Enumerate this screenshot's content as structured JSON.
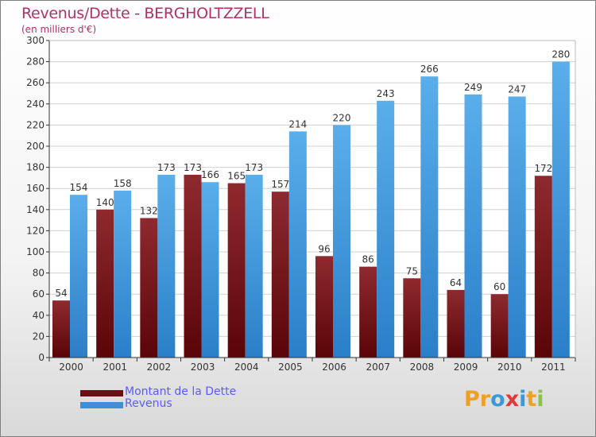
{
  "chart_data": {
    "type": "bar",
    "title": "Revenus/Dette - BERGHOLTZZELL",
    "subtitle": "(en milliers d'€)",
    "categories": [
      "2000",
      "2001",
      "2002",
      "2003",
      "2004",
      "2005",
      "2006",
      "2007",
      "2008",
      "2009",
      "2010",
      "2011"
    ],
    "series": [
      {
        "name": "Montant de la Dette",
        "values": [
          54,
          140,
          132,
          173,
          165,
          157,
          96,
          86,
          75,
          64,
          60,
          172
        ],
        "color": "#6b0f14"
      },
      {
        "name": "Revenus",
        "values": [
          154,
          158,
          173,
          166,
          173,
          214,
          220,
          243,
          266,
          249,
          247,
          280
        ],
        "color": "#3d8fd8"
      }
    ],
    "ylim": [
      0,
      300
    ],
    "yticks": [
      0,
      20,
      40,
      60,
      80,
      100,
      120,
      140,
      160,
      180,
      200,
      220,
      240,
      260,
      280,
      300
    ],
    "grid": true,
    "legend": "bottom-left",
    "xlabel": "",
    "ylabel": ""
  },
  "logo": {
    "letters": [
      "P",
      "r",
      "o",
      "x",
      "i",
      "t",
      "i"
    ],
    "colors": [
      "#f0a020",
      "#f0a020",
      "#3a9ad9",
      "#e03a3a",
      "#3a9ad9",
      "#f0a020",
      "#8bc34a"
    ]
  }
}
